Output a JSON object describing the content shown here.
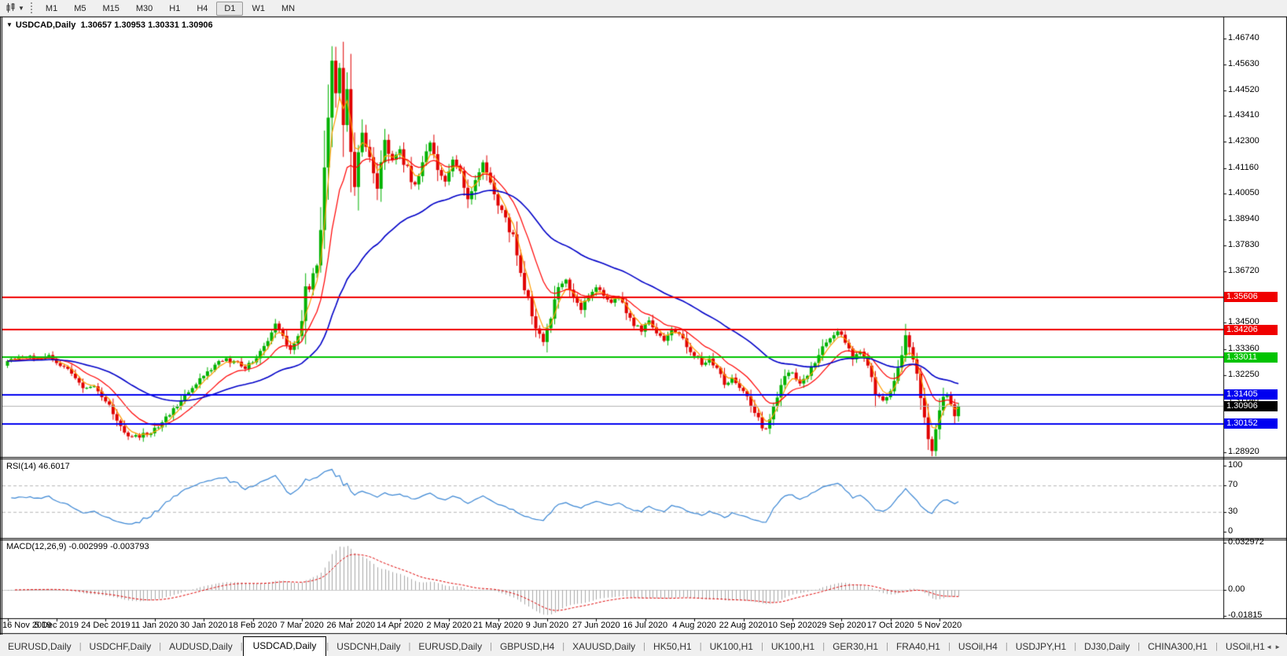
{
  "toolbar": {
    "timeframes": [
      "M1",
      "M5",
      "M15",
      "M30",
      "H1",
      "H4",
      "D1",
      "W1",
      "MN"
    ],
    "active_timeframe": "D1"
  },
  "window": {
    "title_symbol": "USDCAD,Daily",
    "title_ohlc": "1.30657 1.30953 1.30331 1.30906"
  },
  "panes": {
    "rsi_label": "RSI(14) 46.6017",
    "macd_label": "MACD(12,26,9) -0.002999 -0.003793"
  },
  "price_axis": {
    "ticks": [
      {
        "label": "1.46740",
        "price": 1.4674
      },
      {
        "label": "1.45630",
        "price": 1.4563
      },
      {
        "label": "1.44520",
        "price": 1.4452
      },
      {
        "label": "1.43410",
        "price": 1.4341
      },
      {
        "label": "1.42300",
        "price": 1.423
      },
      {
        "label": "1.41160",
        "price": 1.4116
      },
      {
        "label": "1.40050",
        "price": 1.4005
      },
      {
        "label": "1.38940",
        "price": 1.3894
      },
      {
        "label": "1.37830",
        "price": 1.3783
      },
      {
        "label": "1.36720",
        "price": 1.3672
      },
      {
        "label": "1.34500",
        "price": 1.345
      },
      {
        "label": "1.33360",
        "price": 1.3336
      },
      {
        "label": "1.32250",
        "price": 1.3225
      },
      {
        "label": "1.31140",
        "price": 1.3114
      },
      {
        "label": "1.30030",
        "price": 1.3003
      },
      {
        "label": "1.28920",
        "price": 1.2892
      }
    ],
    "badges": [
      {
        "label": "1.35606",
        "price": 1.35606,
        "color": "#f00000"
      },
      {
        "label": "1.34206",
        "price": 1.34206,
        "color": "#f00000"
      },
      {
        "label": "1.33011",
        "price": 1.33011,
        "color": "#00c400"
      },
      {
        "label": "1.31405",
        "price": 1.31405,
        "color": "#0000f0"
      },
      {
        "label": "1.30906",
        "price": 1.30906,
        "color": "#000000"
      },
      {
        "label": "1.30152",
        "price": 1.30152,
        "color": "#0000f0"
      }
    ]
  },
  "rsi_axis": [
    {
      "label": "100",
      "value": 100
    },
    {
      "label": "70",
      "value": 70
    },
    {
      "label": "30",
      "value": 30
    },
    {
      "label": "0",
      "value": 0
    }
  ],
  "macd_axis": [
    {
      "label": "0.032972",
      "value": 0.032972
    },
    {
      "label": "0.00",
      "value": 0
    },
    {
      "label": "-0.01815",
      "value": -0.01815
    }
  ],
  "time_axis": {
    "labels": [
      "16 Nov 2019",
      "5 Dec 2019",
      "24 Dec 2019",
      "11 Jan 2020",
      "30 Jan 2020",
      "18 Feb 2020",
      "7 Mar 2020",
      "26 Mar 2020",
      "14 Apr 2020",
      "2 May 2020",
      "21 May 2020",
      "9 Jun 2020",
      "27 Jun 2020",
      "16 Jul 2020",
      "4 Aug 2020",
      "22 Aug 2020",
      "10 Sep 2020",
      "29 Sep 2020",
      "17 Oct 2020",
      "5 Nov 2020"
    ],
    "candles_per_label": 13
  },
  "tabs": {
    "items": [
      "EURUSD,Daily",
      "USDCHF,Daily",
      "AUDUSD,Daily",
      "USDCAD,Daily",
      "USDCNH,Daily",
      "EURUSD,Daily",
      "GBPUSD,H4",
      "XAUUSD,Daily",
      "HK50,H1",
      "UK100,H1",
      "UK100,H1",
      "GER30,H1",
      "FRA40,H1",
      "USOil,H4",
      "USDJPY,H1",
      "DJ30,Daily",
      "CHINA300,H1",
      "USOil,H1"
    ],
    "active_index": 3
  },
  "chart_data": {
    "type": "candlestick",
    "symbol": "USDCAD",
    "timeframe": "Daily",
    "ohlc_display": {
      "open": "1.30657",
      "high": "1.30953",
      "low": "1.30331",
      "close": "1.30906"
    },
    "candle_count": 253,
    "visible_price_range": [
      1.2858,
      1.4765
    ],
    "up_color": "#00b200",
    "down_color": "#e00000",
    "close_path_anchors": [
      [
        0,
        1.3285
      ],
      [
        4,
        1.331
      ],
      [
        8,
        1.3295
      ],
      [
        11,
        1.3305
      ],
      [
        14,
        1.327
      ],
      [
        17,
        1.3235
      ],
      [
        20,
        1.3165
      ],
      [
        23,
        1.3175
      ],
      [
        26,
        1.312
      ],
      [
        29,
        1.303
      ],
      [
        31,
        1.2975
      ],
      [
        34,
        1.296
      ],
      [
        37,
        1.297
      ],
      [
        40,
        1.3005
      ],
      [
        43,
        1.306
      ],
      [
        46,
        1.311
      ],
      [
        49,
        1.3175
      ],
      [
        52,
        1.322
      ],
      [
        55,
        1.327
      ],
      [
        58,
        1.329
      ],
      [
        60,
        1.328
      ],
      [
        63,
        1.326
      ],
      [
        66,
        1.33
      ],
      [
        69,
        1.337
      ],
      [
        71,
        1.344
      ],
      [
        73,
        1.3395
      ],
      [
        75,
        1.333
      ],
      [
        77,
        1.339
      ],
      [
        79,
        1.358
      ],
      [
        81,
        1.366
      ],
      [
        82,
        1.372
      ],
      [
        83,
        1.386
      ],
      [
        84,
        1.412
      ],
      [
        85,
        1.433
      ],
      [
        86,
        1.46
      ],
      [
        87,
        1.444
      ],
      [
        88,
        1.453
      ],
      [
        89,
        1.433
      ],
      [
        90,
        1.444
      ],
      [
        91,
        1.416
      ],
      [
        92,
        1.404
      ],
      [
        94,
        1.428
      ],
      [
        96,
        1.416
      ],
      [
        98,
        1.405
      ],
      [
        100,
        1.422
      ],
      [
        102,
        1.415
      ],
      [
        104,
        1.419
      ],
      [
        106,
        1.41
      ],
      [
        108,
        1.402
      ],
      [
        110,
        1.414
      ],
      [
        112,
        1.423
      ],
      [
        114,
        1.411
      ],
      [
        116,
        1.406
      ],
      [
        118,
        1.416
      ],
      [
        120,
        1.41
      ],
      [
        122,
        1.398
      ],
      [
        124,
        1.407
      ],
      [
        126,
        1.414
      ],
      [
        128,
        1.405
      ],
      [
        130,
        1.397
      ],
      [
        132,
        1.389
      ],
      [
        134,
        1.382
      ],
      [
        136,
        1.366
      ],
      [
        138,
        1.355
      ],
      [
        140,
        1.343
      ],
      [
        142,
        1.337
      ],
      [
        144,
        1.348
      ],
      [
        146,
        1.359
      ],
      [
        148,
        1.364
      ],
      [
        150,
        1.356
      ],
      [
        152,
        1.352
      ],
      [
        154,
        1.357
      ],
      [
        156,
        1.361
      ],
      [
        158,
        1.357
      ],
      [
        160,
        1.353
      ],
      [
        162,
        1.356
      ],
      [
        164,
        1.35
      ],
      [
        166,
        1.344
      ],
      [
        168,
        1.342
      ],
      [
        170,
        1.346
      ],
      [
        172,
        1.341
      ],
      [
        174,
        1.338
      ],
      [
        176,
        1.343
      ],
      [
        178,
        1.34
      ],
      [
        180,
        1.335
      ],
      [
        182,
        1.331
      ],
      [
        184,
        1.327
      ],
      [
        186,
        1.33
      ],
      [
        188,
        1.325
      ],
      [
        190,
        1.319
      ],
      [
        192,
        1.321
      ],
      [
        194,
        1.317
      ],
      [
        196,
        1.313
      ],
      [
        198,
        1.307
      ],
      [
        200,
        1.3
      ],
      [
        201,
        1.2985
      ],
      [
        202,
        1.304
      ],
      [
        204,
        1.313
      ],
      [
        206,
        1.322
      ],
      [
        208,
        1.324
      ],
      [
        210,
        1.319
      ],
      [
        212,
        1.323
      ],
      [
        214,
        1.328
      ],
      [
        216,
        1.334
      ],
      [
        218,
        1.339
      ],
      [
        220,
        1.3415
      ],
      [
        222,
        1.337
      ],
      [
        224,
        1.33
      ],
      [
        226,
        1.333
      ],
      [
        228,
        1.327
      ],
      [
        230,
        1.315
      ],
      [
        232,
        1.311
      ],
      [
        234,
        1.315
      ],
      [
        236,
        1.325
      ],
      [
        238,
        1.339
      ],
      [
        239,
        1.334
      ],
      [
        240,
        1.329
      ],
      [
        241,
        1.323
      ],
      [
        242,
        1.313
      ],
      [
        243,
        1.304
      ],
      [
        244,
        1.294
      ],
      [
        245,
        1.2895
      ],
      [
        246,
        1.3
      ],
      [
        247,
        1.307
      ],
      [
        248,
        1.313
      ],
      [
        249,
        1.3145
      ],
      [
        250,
        1.309
      ],
      [
        251,
        1.3055
      ],
      [
        252,
        1.30906
      ]
    ],
    "moving_averages": [
      {
        "name": "fast",
        "period": 4,
        "color": "#ff9d00"
      },
      {
        "name": "medium",
        "period": 13,
        "color": "#ff0000"
      },
      {
        "name": "slow",
        "period": 45,
        "color": "#0000c8"
      }
    ],
    "hlines": [
      {
        "price": 1.35606,
        "color": "#f00000",
        "width": 2
      },
      {
        "price": 1.34206,
        "color": "#f00000",
        "width": 2
      },
      {
        "price": 1.33011,
        "color": "#00c400",
        "width": 2
      },
      {
        "price": 1.31405,
        "color": "#0000f0",
        "width": 2
      },
      {
        "price": 1.30906,
        "color": "#b4b4b4",
        "width": 1
      },
      {
        "price": 1.30152,
        "color": "#0000f0",
        "width": 2
      }
    ],
    "rsi": {
      "period": 14,
      "last": 46.6017,
      "overbought": 70,
      "oversold": 30,
      "color": "#3a86d4"
    },
    "macd": {
      "fast": 12,
      "slow": 26,
      "signal": 9,
      "last_macd": -0.002999,
      "last_signal": -0.003793,
      "axis_max": 0.032972,
      "axis_min": -0.01815,
      "histogram_color": "#a8a8a8",
      "signal_color": "#e00000"
    }
  }
}
